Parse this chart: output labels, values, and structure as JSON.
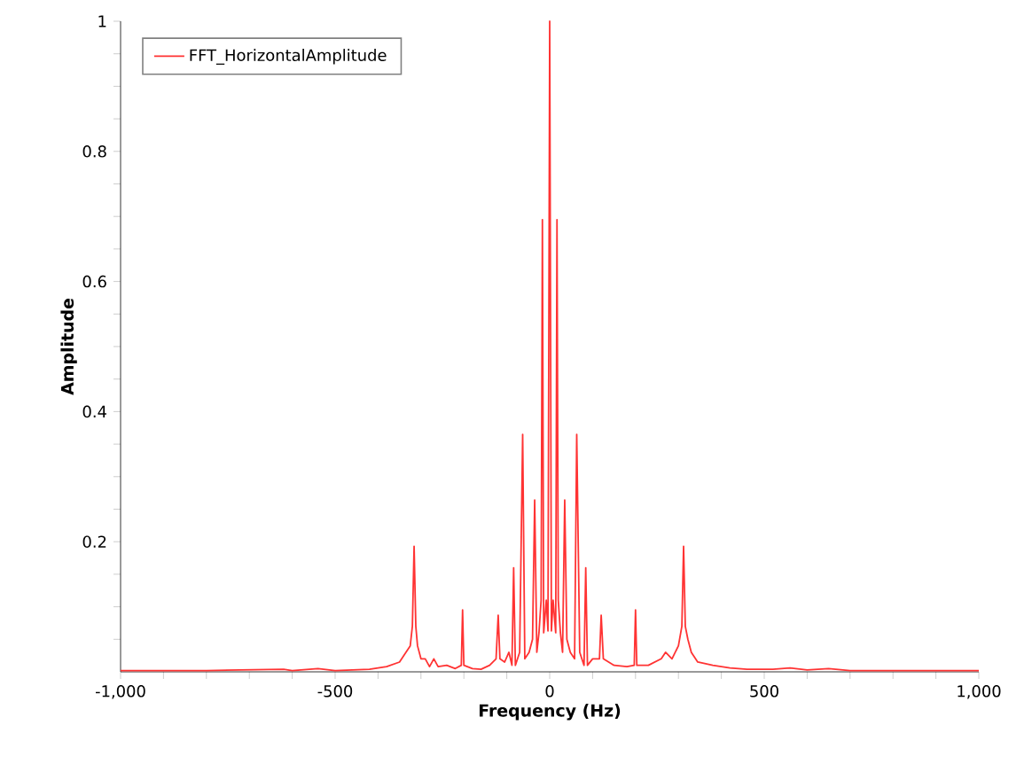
{
  "chart_data": {
    "type": "line",
    "xlabel": "Frequency (Hz)",
    "ylabel": "Amplitude",
    "xlim": [
      -1000,
      1000
    ],
    "ylim": [
      0,
      1
    ],
    "xticks": [
      {
        "value": -1000,
        "label": "-1,000"
      },
      {
        "value": -900,
        "label": null
      },
      {
        "value": -800,
        "label": null
      },
      {
        "value": -700,
        "label": null
      },
      {
        "value": -600,
        "label": null
      },
      {
        "value": -500,
        "label": "-500"
      },
      {
        "value": -400,
        "label": null
      },
      {
        "value": -300,
        "label": null
      },
      {
        "value": -200,
        "label": null
      },
      {
        "value": -100,
        "label": null
      },
      0,
      {
        "value": 100,
        "label": null
      },
      {
        "value": 200,
        "label": null
      },
      {
        "value": 300,
        "label": null
      },
      {
        "value": 400,
        "label": null
      },
      500,
      {
        "value": 600,
        "label": null
      },
      {
        "value": 700,
        "label": null
      },
      {
        "value": 800,
        "label": null
      },
      {
        "value": 900,
        "label": null
      },
      {
        "value": 1000,
        "label": "1,000"
      }
    ],
    "yticks": [
      {
        "value": 0.05,
        "label": null
      },
      {
        "value": 0.1,
        "label": null
      },
      {
        "value": 0.15,
        "label": null
      },
      0.2,
      {
        "value": 0.25,
        "label": null
      },
      {
        "value": 0.3,
        "label": null
      },
      {
        "value": 0.35,
        "label": null
      },
      0.4,
      {
        "value": 0.45,
        "label": null
      },
      {
        "value": 0.5,
        "label": null
      },
      {
        "value": 0.55,
        "label": null
      },
      0.6,
      {
        "value": 0.65,
        "label": null
      },
      {
        "value": 0.7,
        "label": null
      },
      {
        "value": 0.75,
        "label": null
      },
      0.8,
      {
        "value": 0.85,
        "label": null
      },
      {
        "value": 0.9,
        "label": null
      },
      {
        "value": 0.95,
        "label": null
      },
      1
    ],
    "legend": "top left",
    "marker": "none",
    "line_style": "solid",
    "series": [
      {
        "name": "FFT_HorizontalAmplitude",
        "color": "#ff3333",
        "x": [
          -1000,
          -800,
          -620,
          -600,
          -540,
          -500,
          -420,
          -380,
          -350,
          -335,
          -325,
          -320,
          -316,
          -312,
          -308,
          -300,
          -290,
          -280,
          -270,
          -260,
          -240,
          -220,
          -206,
          -203,
          -200,
          -180,
          -160,
          -140,
          -125,
          -120,
          -116,
          -105,
          -95,
          -88,
          -84,
          -80,
          -70,
          -63,
          -58,
          -48,
          -40,
          -35,
          -30,
          -25,
          -20,
          -17,
          -14,
          -8,
          -4,
          0,
          4,
          8,
          14,
          17,
          20,
          25,
          30,
          35,
          40,
          48,
          58,
          63,
          70,
          80,
          84,
          88,
          100,
          116,
          120,
          125,
          150,
          180,
          197,
          200,
          203,
          230,
          260,
          270,
          285,
          300,
          308,
          312,
          316,
          322,
          330,
          345,
          380,
          420,
          460,
          520,
          560,
          600,
          650,
          700,
          1000
        ],
        "values": [
          0.002,
          0.002,
          0.004,
          0.002,
          0.005,
          0.002,
          0.004,
          0.008,
          0.015,
          0.03,
          0.04,
          0.07,
          0.193,
          0.07,
          0.04,
          0.02,
          0.02,
          0.008,
          0.02,
          0.008,
          0.01,
          0.005,
          0.01,
          0.095,
          0.01,
          0.005,
          0.004,
          0.01,
          0.02,
          0.087,
          0.02,
          0.015,
          0.03,
          0.01,
          0.16,
          0.01,
          0.03,
          0.365,
          0.02,
          0.03,
          0.05,
          0.264,
          0.03,
          0.06,
          0.11,
          0.695,
          0.06,
          0.11,
          0.063,
          1.0,
          0.063,
          0.11,
          0.06,
          0.695,
          0.11,
          0.06,
          0.03,
          0.264,
          0.05,
          0.03,
          0.02,
          0.365,
          0.03,
          0.01,
          0.16,
          0.01,
          0.02,
          0.02,
          0.087,
          0.02,
          0.01,
          0.008,
          0.01,
          0.095,
          0.01,
          0.01,
          0.02,
          0.03,
          0.02,
          0.04,
          0.07,
          0.193,
          0.07,
          0.05,
          0.03,
          0.015,
          0.01,
          0.006,
          0.004,
          0.004,
          0.006,
          0.003,
          0.005,
          0.002,
          0.002
        ]
      }
    ]
  }
}
